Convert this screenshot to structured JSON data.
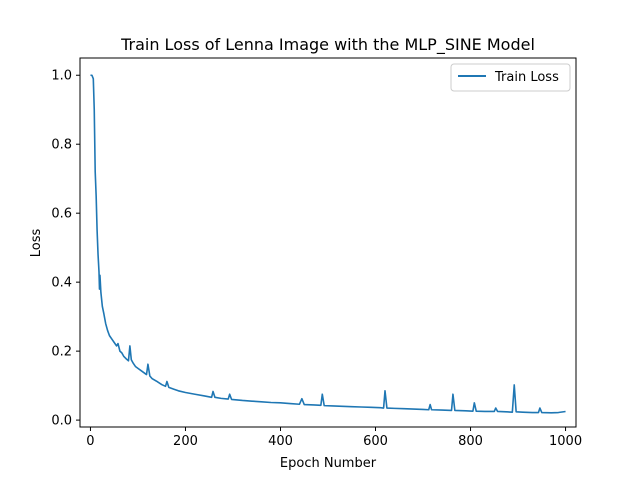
{
  "chart_data": {
    "type": "line",
    "title": "Train Loss of Lenna Image with the MLP_SINE Model",
    "xlabel": "Epoch Number",
    "ylabel": "Loss",
    "xlim": [
      -22,
      1022
    ],
    "ylim": [
      -0.02,
      1.05
    ],
    "xticks": [
      0,
      200,
      400,
      600,
      800,
      1000
    ],
    "yticks": [
      0.0,
      0.2,
      0.4,
      0.6,
      0.8,
      1.0
    ],
    "xtick_labels": [
      "0",
      "200",
      "400",
      "600",
      "800",
      "1000"
    ],
    "ytick_labels": [
      "0.0",
      "0.2",
      "0.4",
      "0.6",
      "0.8",
      "1.0"
    ],
    "grid": false,
    "legend_position": "upper right",
    "series": [
      {
        "name": "Train Loss",
        "color": "#1f77b4",
        "points": [
          [
            0,
            1.0
          ],
          [
            3,
            1.0
          ],
          [
            6,
            0.99
          ],
          [
            8,
            0.9
          ],
          [
            10,
            0.72
          ],
          [
            12,
            0.65
          ],
          [
            14,
            0.55
          ],
          [
            16,
            0.48
          ],
          [
            18,
            0.43
          ],
          [
            19,
            0.38
          ],
          [
            20,
            0.42
          ],
          [
            22,
            0.37
          ],
          [
            25,
            0.33
          ],
          [
            28,
            0.31
          ],
          [
            32,
            0.28
          ],
          [
            36,
            0.26
          ],
          [
            40,
            0.245
          ],
          [
            45,
            0.235
          ],
          [
            50,
            0.225
          ],
          [
            55,
            0.215
          ],
          [
            58,
            0.222
          ],
          [
            62,
            0.2
          ],
          [
            66,
            0.195
          ],
          [
            70,
            0.185
          ],
          [
            75,
            0.178
          ],
          [
            80,
            0.172
          ],
          [
            83,
            0.215
          ],
          [
            86,
            0.175
          ],
          [
            90,
            0.165
          ],
          [
            95,
            0.155
          ],
          [
            100,
            0.15
          ],
          [
            110,
            0.14
          ],
          [
            118,
            0.132
          ],
          [
            121,
            0.162
          ],
          [
            125,
            0.128
          ],
          [
            130,
            0.12
          ],
          [
            140,
            0.112
          ],
          [
            150,
            0.103
          ],
          [
            158,
            0.098
          ],
          [
            161,
            0.112
          ],
          [
            165,
            0.095
          ],
          [
            175,
            0.09
          ],
          [
            185,
            0.085
          ],
          [
            200,
            0.08
          ],
          [
            220,
            0.075
          ],
          [
            240,
            0.07
          ],
          [
            255,
            0.066
          ],
          [
            258,
            0.083
          ],
          [
            262,
            0.066
          ],
          [
            275,
            0.063
          ],
          [
            290,
            0.061
          ],
          [
            293,
            0.075
          ],
          [
            297,
            0.06
          ],
          [
            320,
            0.057
          ],
          [
            340,
            0.055
          ],
          [
            360,
            0.053
          ],
          [
            380,
            0.051
          ],
          [
            400,
            0.05
          ],
          [
            420,
            0.048
          ],
          [
            440,
            0.046
          ],
          [
            445,
            0.062
          ],
          [
            450,
            0.045
          ],
          [
            470,
            0.044
          ],
          [
            485,
            0.043
          ],
          [
            488,
            0.075
          ],
          [
            492,
            0.042
          ],
          [
            510,
            0.041
          ],
          [
            530,
            0.04
          ],
          [
            550,
            0.039
          ],
          [
            570,
            0.038
          ],
          [
            590,
            0.037
          ],
          [
            610,
            0.036
          ],
          [
            617,
            0.035
          ],
          [
            620,
            0.085
          ],
          [
            624,
            0.035
          ],
          [
            640,
            0.034
          ],
          [
            660,
            0.033
          ],
          [
            680,
            0.032
          ],
          [
            700,
            0.031
          ],
          [
            712,
            0.03
          ],
          [
            715,
            0.045
          ],
          [
            718,
            0.03
          ],
          [
            740,
            0.029
          ],
          [
            760,
            0.028
          ],
          [
            763,
            0.075
          ],
          [
            767,
            0.028
          ],
          [
            790,
            0.027
          ],
          [
            805,
            0.026
          ],
          [
            808,
            0.05
          ],
          [
            812,
            0.026
          ],
          [
            830,
            0.025
          ],
          [
            850,
            0.025
          ],
          [
            853,
            0.035
          ],
          [
            857,
            0.025
          ],
          [
            875,
            0.024
          ],
          [
            888,
            0.023
          ],
          [
            892,
            0.102
          ],
          [
            896,
            0.024
          ],
          [
            910,
            0.023
          ],
          [
            930,
            0.022
          ],
          [
            943,
            0.022
          ],
          [
            946,
            0.035
          ],
          [
            950,
            0.022
          ],
          [
            970,
            0.021
          ],
          [
            985,
            0.022
          ],
          [
            1000,
            0.025
          ]
        ]
      }
    ]
  }
}
